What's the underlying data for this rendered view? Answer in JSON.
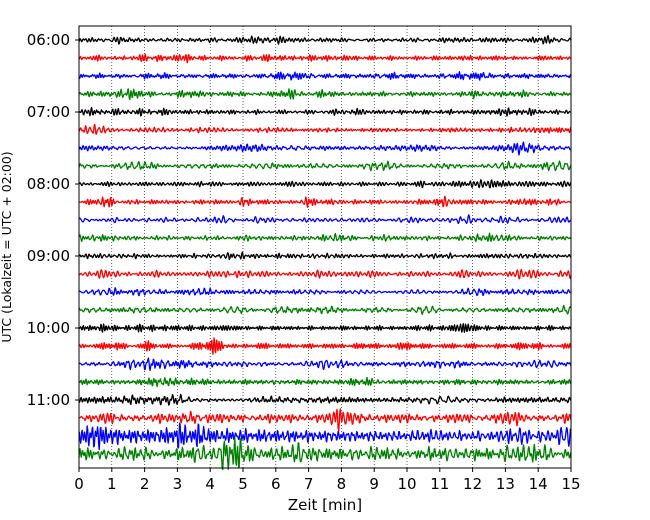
{
  "chart_data": {
    "type": "line",
    "title": "",
    "xlabel": "Zeit  [min]",
    "ylabel": "UTC (Lokalzeit = UTC + 02:00)",
    "xlim": [
      0,
      15
    ],
    "x_ticks": [
      "0",
      "1",
      "2",
      "3",
      "4",
      "5",
      "6",
      "7",
      "8",
      "9",
      "10",
      "11",
      "12",
      "13",
      "14",
      "15"
    ],
    "y_tick_labels": [
      "06:00",
      "07:00",
      "08:00",
      "09:00",
      "10:00",
      "11:00"
    ],
    "grid": "vertical-dotted",
    "trace_colors": [
      "#000000",
      "#ff0000",
      "#0000ff",
      "#008000"
    ],
    "trace_count": 24,
    "trace_start_times": [
      "06:00",
      "06:15",
      "06:30",
      "06:45",
      "07:00",
      "07:15",
      "07:30",
      "07:45",
      "08:00",
      "08:15",
      "08:30",
      "08:45",
      "09:00",
      "09:15",
      "09:30",
      "09:45",
      "10:00",
      "10:15",
      "10:30",
      "10:45",
      "11:00",
      "11:15",
      "11:30",
      "11:45"
    ],
    "trace_amplitudes": [
      0.2,
      0.2,
      0.2,
      0.2,
      0.2,
      0.2,
      0.2,
      0.2,
      0.2,
      0.2,
      0.2,
      0.2,
      0.2,
      0.2,
      0.2,
      0.2,
      0.22,
      0.24,
      0.22,
      0.22,
      0.24,
      0.38,
      0.55,
      0.6
    ]
  }
}
